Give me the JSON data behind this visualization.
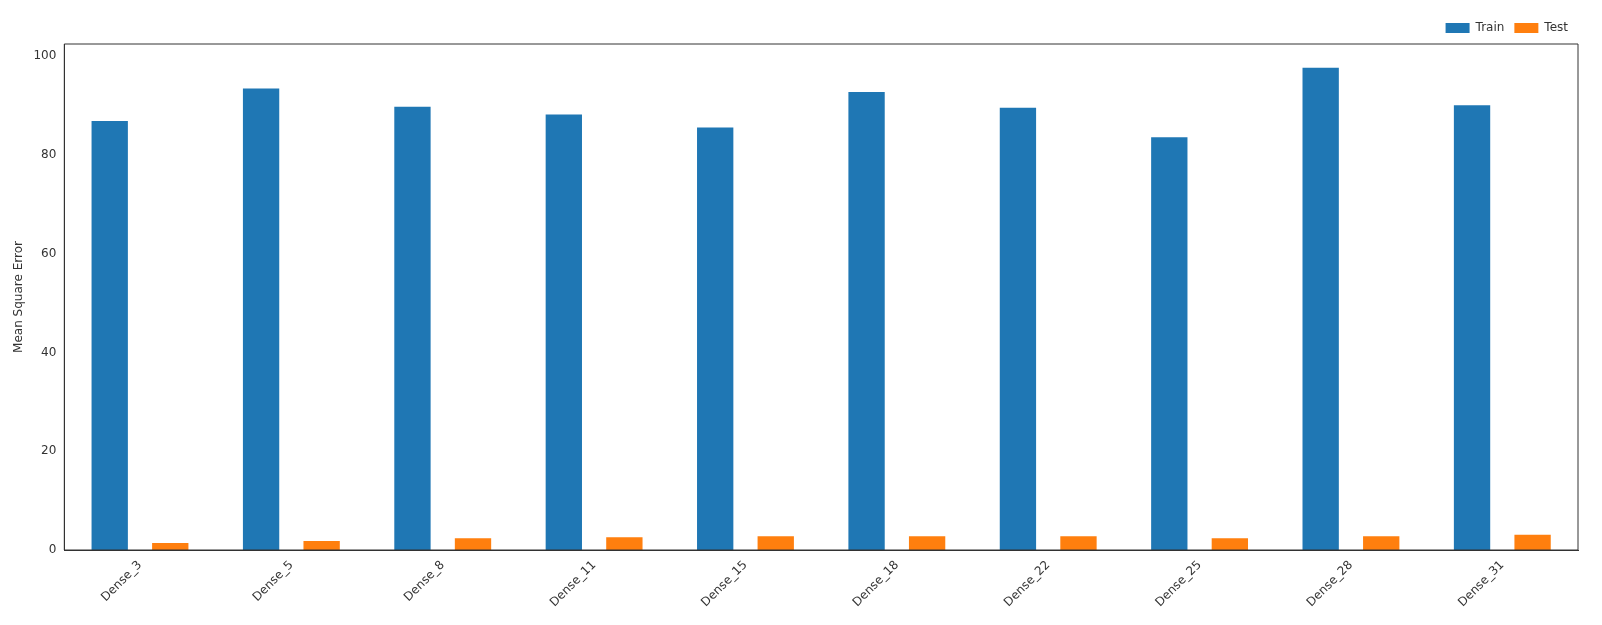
{
  "chart_data": {
    "type": "bar",
    "ylabel": "Mean Square Error",
    "categories": [
      "Dense_3",
      "Dense_5",
      "Dense_8",
      "Dense_11",
      "Dense_15",
      "Dense_18",
      "Dense_22",
      "Dense_25",
      "Dense_28",
      "Dense_31"
    ],
    "series": [
      {
        "name": "Train",
        "color": "#1f77b4",
        "values": [
          86.9,
          93.5,
          89.8,
          88.2,
          85.6,
          92.8,
          89.6,
          83.6,
          97.7,
          90.1
        ]
      },
      {
        "name": "Test",
        "color": "#ff7f0e",
        "values": [
          1.4,
          1.8,
          2.4,
          2.6,
          2.8,
          2.8,
          2.8,
          2.4,
          2.8,
          3.1
        ]
      }
    ],
    "ylim": [
      0,
      102.5
    ],
    "yticks": [
      0,
      20,
      40,
      60,
      80,
      100
    ],
    "grid": false,
    "legend": "top right"
  }
}
